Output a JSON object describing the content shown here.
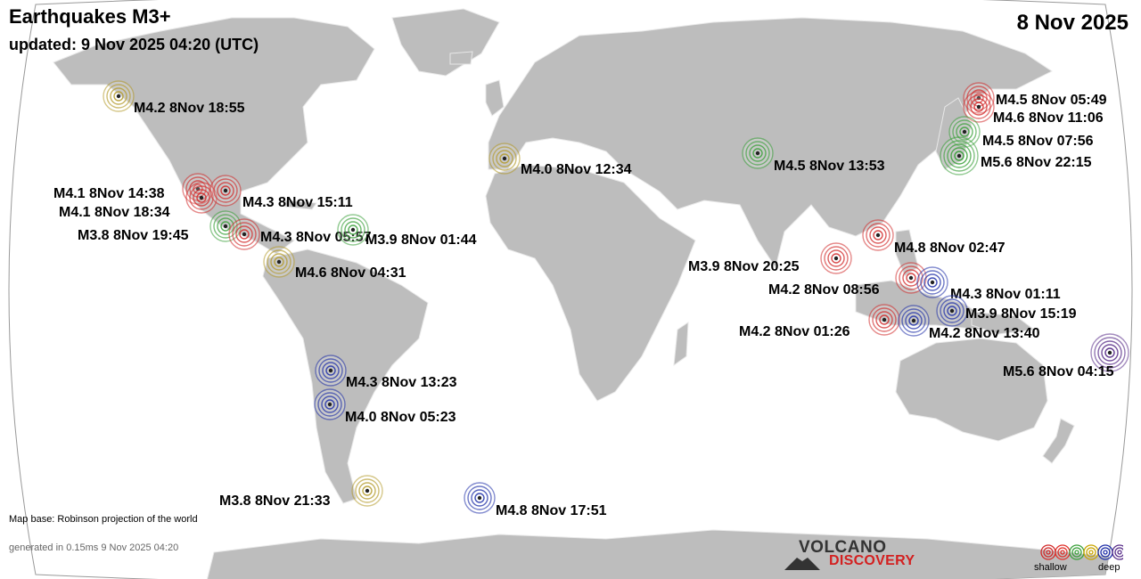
{
  "header": {
    "title": "Earthquakes M3+",
    "updated": "updated:  9 Nov 2025 04:20 (UTC)",
    "date": "8 Nov 2025"
  },
  "footer": {
    "map_base": "Map base: Robinson projection of the world",
    "generated": "generated in 0.15ms  9 Nov 2025 04:20",
    "logo_top": "VOLCANO",
    "logo_bottom": "DISCOVERY"
  },
  "legend": {
    "shallow_label": "shallow",
    "deep_label": "deep",
    "depth_colors": [
      "#d12a2a",
      "#e0302a",
      "#3aa03a",
      "#c9a400",
      "#1f2fa8",
      "#5a2f8a"
    ]
  },
  "colors": {
    "ocean": "#ffffff",
    "land": "#bdbdbd",
    "border": "#e8e8e8"
  },
  "earthquakes": [
    {
      "mag": "M4.2",
      "time": "8Nov 18:55",
      "depth_class": "mid",
      "lon": -160,
      "lat": 57
    },
    {
      "mag": "M4.1",
      "time": "8Nov 14:38",
      "depth_class": "shallow",
      "lon": -104,
      "lat": 22
    },
    {
      "mag": "M4.1",
      "time": "8Nov 18:34",
      "depth_class": "shallow",
      "lon": -103,
      "lat": 20
    },
    {
      "mag": "M4.3",
      "time": "8Nov 15:11",
      "depth_class": "shallow",
      "lon": -98,
      "lat": 21
    },
    {
      "mag": "M3.8",
      "time": "8Nov 19:45",
      "depth_class": "intermediate",
      "lon": -98,
      "lat": 15
    },
    {
      "mag": "M4.3",
      "time": "8Nov 05:57",
      "depth_class": "shallow",
      "lon": -92,
      "lat": 14
    },
    {
      "mag": "M3.9",
      "time": "8Nov 01:44",
      "depth_class": "intermediate",
      "lon": -69,
      "lat": 14
    },
    {
      "mag": "M4.6",
      "time": "8Nov 04:31",
      "depth_class": "mid",
      "lon": -86,
      "lat": 7
    },
    {
      "mag": "M4.0",
      "time": "8Nov 12:34",
      "depth_class": "mid",
      "lon": -11,
      "lat": 39
    },
    {
      "mag": "M4.5",
      "time": "8Nov 13:53",
      "depth_class": "intermediate",
      "lon": 70,
      "lat": 36
    },
    {
      "mag": "M4.5",
      "time": "8Nov 05:49",
      "depth_class": "shallow",
      "lon": 142,
      "lat": 50
    },
    {
      "mag": "M4.6",
      "time": "8Nov 11:06",
      "depth_class": "shallow",
      "lon": 141,
      "lat": 46
    },
    {
      "mag": "M4.5",
      "time": "8Nov 07:56",
      "depth_class": "intermediate",
      "lon": 138,
      "lat": 38
    },
    {
      "mag": "M5.6",
      "time": "8Nov 22:15",
      "depth_class": "intermediate",
      "lon": 136,
      "lat": 35
    },
    {
      "mag": "M4.8",
      "time": "8Nov 02:47",
      "depth_class": "shallow",
      "lon": 119,
      "lat": 18
    },
    {
      "mag": "M3.9",
      "time": "8Nov 20:25",
      "depth_class": "shallow",
      "lon": 96,
      "lat": 10
    },
    {
      "mag": "M4.2",
      "time": "8Nov 08:56",
      "depth_class": "shallow",
      "lon": 126,
      "lat": 5
    },
    {
      "mag": "M4.3",
      "time": "8Nov 01:11",
      "depth_class": "deep",
      "lon": 130,
      "lat": 2
    },
    {
      "mag": "M3.9",
      "time": "8Nov 15:19",
      "depth_class": "deep",
      "lon": 133,
      "lat": -3
    },
    {
      "mag": "M4.2",
      "time": "8Nov 01:26",
      "depth_class": "shallow",
      "lon": 113,
      "lat": -7
    },
    {
      "mag": "M4.2",
      "time": "8Nov 13:40",
      "depth_class": "deep",
      "lon": 120,
      "lat": -7
    },
    {
      "mag": "M5.6",
      "time": "8Nov 04:15",
      "depth_class": "verydeep",
      "lon": 178,
      "lat": -17
    },
    {
      "mag": "M4.3",
      "time": "8Nov 13:23",
      "depth_class": "deep",
      "lon": -67,
      "lat": -23
    },
    {
      "mag": "M4.0",
      "time": "8Nov 05:23",
      "depth_class": "deep",
      "lon": -67,
      "lat": -31
    },
    {
      "mag": "M3.8",
      "time": "8Nov 21:33",
      "depth_class": "mid",
      "lon": -55,
      "lat": -57
    },
    {
      "mag": "M4.8",
      "time": "8Nov 17:51",
      "depth_class": "deep",
      "lon": -25,
      "lat": -57
    }
  ]
}
